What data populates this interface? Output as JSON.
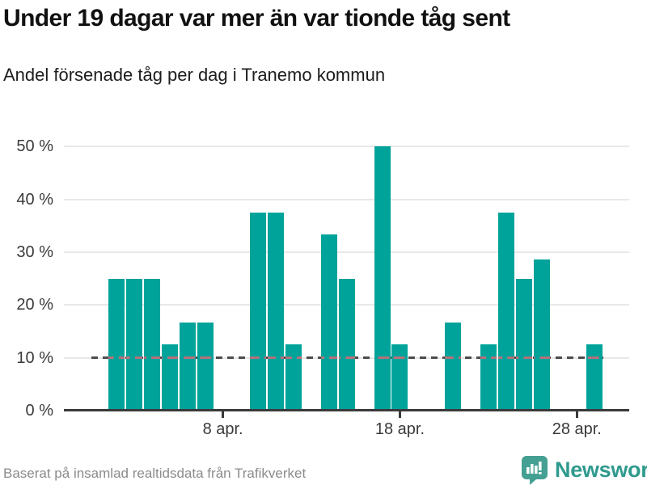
{
  "header": {
    "title": "Under 19 dagar var mer än var tionde tåg sent",
    "subtitle": "Andel försenade tåg per dag i Tranemo kommun"
  },
  "chart_data": {
    "type": "bar",
    "title": "Under 19 dagar var mer än var tionde tåg sent",
    "subtitle": "Andel försenade tåg per dag i Tranemo kommun",
    "x_unit": "day of April",
    "days": [
      2,
      3,
      4,
      5,
      6,
      7,
      10,
      11,
      12,
      14,
      15,
      17,
      18,
      21,
      23,
      24,
      25,
      26,
      29
    ],
    "values": [
      25,
      25,
      25,
      12.5,
      16.7,
      16.7,
      37.5,
      37.5,
      12.5,
      33.3,
      25,
      50,
      12.5,
      16.7,
      12.5,
      37.5,
      25,
      28.6,
      12.5
    ],
    "unit": "%",
    "ylim": [
      0,
      50
    ],
    "y_ticks": [
      0,
      10,
      20,
      30,
      40,
      50
    ],
    "y_tick_labels": [
      "0 %",
      "10 %",
      "20 %",
      "30 %",
      "40 %",
      "50 %"
    ],
    "x_tick_days": [
      8,
      18,
      28
    ],
    "x_tick_labels": [
      "8 apr.",
      "18 apr.",
      "28 apr."
    ],
    "reference_line": {
      "value": 10,
      "style": "dashed"
    },
    "grid": true,
    "legend": "none",
    "bar_color": "#00a39a"
  },
  "footer": {
    "source": "Baserat på insamlad realtidsdata från Trafikverket"
  },
  "brand": {
    "name": "Newsworthy",
    "icon": "newsworthy-speech-bubble-bar-chart-icon"
  },
  "colors": {
    "bar": "#00a39a",
    "grid": "#e8e8e8",
    "axis": "#3a3a3a",
    "dash": "#4d4d4d",
    "dash_on_bar": "#b4717b",
    "title": "#111111",
    "tick_text": "#3a3a3a",
    "muted_text": "#8b8b8b",
    "brand_icon": "#44a093",
    "brand_text": "#2f9a8d"
  }
}
